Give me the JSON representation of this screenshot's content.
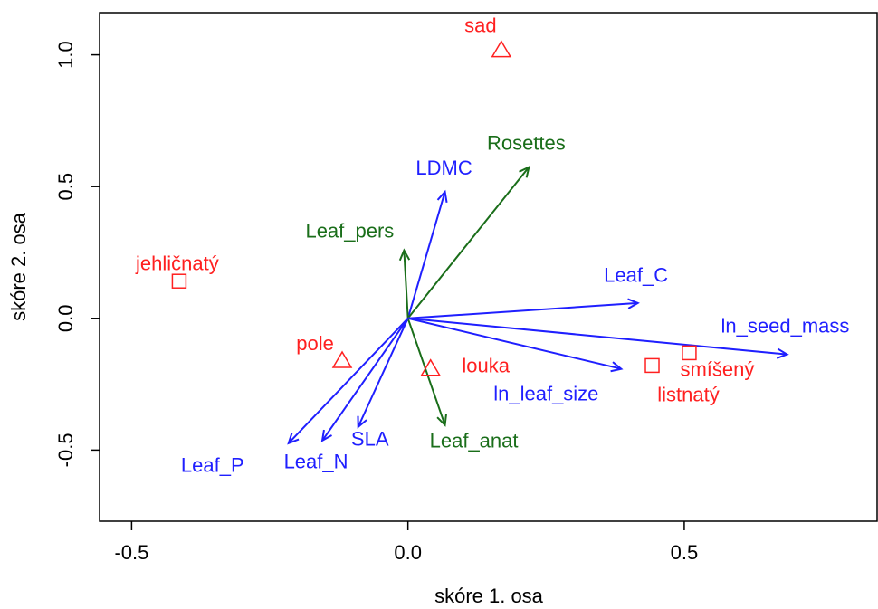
{
  "chart_data": {
    "type": "biplot",
    "xlabel": "skóre 1. osa",
    "ylabel": "skóre 2. osa",
    "xlim": [
      -0.558,
      0.849
    ],
    "ylim": [
      -0.77,
      1.16
    ],
    "xticks": [
      -0.5,
      {
        "value": 0,
        "label": "0.0"
      },
      0.5
    ],
    "yticks": [
      -0.5,
      {
        "value": 0,
        "label": "0.0"
      },
      0.5,
      {
        "value": 1,
        "label": "1.0"
      }
    ],
    "arrows": {
      "labels": [
        "LDMC",
        "Rosettes",
        "Leaf_pers",
        "Leaf_C",
        "ln_seed_mass",
        "ln_leaf_size",
        "Leaf_anat",
        "SLA",
        "Leaf_N",
        "Leaf_P"
      ],
      "x": [
        0.067,
        0.219,
        -0.007,
        0.416,
        0.686,
        0.386,
        0.067,
        -0.09,
        -0.155,
        -0.216
      ],
      "y": [
        0.48,
        0.574,
        0.258,
        0.058,
        -0.137,
        -0.192,
        -0.405,
        -0.412,
        -0.464,
        -0.474
      ],
      "colors": [
        "#1f1fff",
        "#1a6e1a",
        "#1a6e1a",
        "#1f1fff",
        "#1f1fff",
        "#1f1fff",
        "#1a6e1a",
        "#1f1fff",
        "#1f1fff",
        "#1f1fff"
      ]
    },
    "points": {
      "labels": [
        "sad",
        "jehličnatý",
        "pole",
        "louka",
        "smíšený",
        "listnatý"
      ],
      "x": [
        0.169,
        -0.414,
        -0.119,
        0.041,
        0.509,
        0.442
      ],
      "y": [
        1.017,
        0.141,
        -0.162,
        -0.192,
        -0.131,
        -0.179
      ],
      "shapes": [
        "triangle",
        "square",
        "triangle",
        "triangle",
        "square",
        "square"
      ],
      "color": "#ff2020"
    }
  }
}
